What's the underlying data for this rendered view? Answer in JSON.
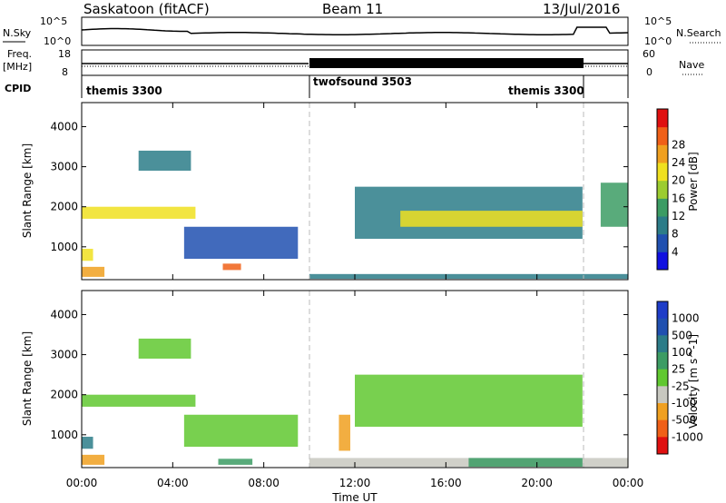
{
  "header": {
    "title": "Saskatoon (fitACF)",
    "beam": "Beam 11",
    "date": "13/Jul/2016"
  },
  "noise_panel": {
    "left_label": "N.Sky",
    "right_label": "N.Search",
    "left_ticks": [
      "10^5",
      "10^0"
    ],
    "right_ticks": [
      "10^5",
      "10^0"
    ]
  },
  "freq_panel": {
    "left_label_1": "Freq.",
    "left_label_2": "[MHz]",
    "right_label": "Nave",
    "left_ticks": [
      "18",
      "8"
    ],
    "right_ticks": [
      "60",
      "0"
    ]
  },
  "cpid_panel": {
    "label": "CPID",
    "segments": [
      {
        "label": "themis 3300",
        "start_h": 0,
        "end_h": 10
      },
      {
        "label": "twofsound 3503",
        "start_h": 10,
        "end_h": 22
      },
      {
        "label": "themis 3300",
        "start_h": 22,
        "end_h": 24
      }
    ]
  },
  "x_axis": {
    "label": "Time UT",
    "ticks": [
      "00:00",
      "04:00",
      "08:00",
      "12:00",
      "16:00",
      "20:00",
      "00:00"
    ]
  },
  "power_colorbar": {
    "label": "Power [dB]",
    "ticks": [
      "4",
      "8",
      "12",
      "16",
      "20",
      "24",
      "28"
    ],
    "colors": [
      "#1010e0",
      "#2050b0",
      "#2c7c88",
      "#3c9c64",
      "#9ccc30",
      "#f0e020",
      "#f0a020",
      "#f06018",
      "#e01010"
    ]
  },
  "velocity_colorbar": {
    "label": "Velocity [m s^-1]",
    "ticks": [
      "1000",
      "500",
      "100",
      "25",
      "-25",
      "-100",
      "-500",
      "-1000"
    ],
    "colors": [
      "#1e3cc8",
      "#2050b0",
      "#2c7c88",
      "#3c9c64",
      "#60c830",
      "#c8c8c0",
      "#f0a020",
      "#f06018",
      "#e01010"
    ]
  },
  "chart_data": [
    {
      "type": "heatmap",
      "title": "",
      "xlabel": "",
      "ylabel": "Slant Range [km]",
      "xlim": [
        0,
        24
      ],
      "ylim": [
        180,
        4600
      ],
      "yticks": [
        "1000",
        "2000",
        "3000",
        "4000"
      ],
      "colorbar": "Power [dB]",
      "regions": [
        {
          "x": [
            0.0,
            5.0
          ],
          "y": [
            1700,
            2000
          ],
          "value": 20
        },
        {
          "x": [
            0.0,
            1.0
          ],
          "y": [
            250,
            500
          ],
          "value": 24
        },
        {
          "x": [
            0.0,
            0.5
          ],
          "y": [
            650,
            950
          ],
          "value": 20
        },
        {
          "x": [
            2.5,
            4.8
          ],
          "y": [
            2900,
            3400
          ],
          "value": 8
        },
        {
          "x": [
            4.5,
            9.5
          ],
          "y": [
            700,
            1500
          ],
          "value": 6
        },
        {
          "x": [
            6.2,
            7.0
          ],
          "y": [
            420,
            580
          ],
          "value": 28
        },
        {
          "x": [
            10.0,
            24.0
          ],
          "y": [
            200,
            320
          ],
          "value": 10
        },
        {
          "x": [
            12.0,
            22.0
          ],
          "y": [
            1200,
            2500
          ],
          "value": 10
        },
        {
          "x": [
            14.0,
            22.0
          ],
          "y": [
            1500,
            1900
          ],
          "value": 20
        },
        {
          "x": [
            22.8,
            24.0
          ],
          "y": [
            1500,
            2600
          ],
          "value": 14
        }
      ]
    },
    {
      "type": "heatmap",
      "title": "",
      "xlabel": "Time UT",
      "ylabel": "Slant Range [km]",
      "xlim": [
        0,
        24
      ],
      "ylim": [
        180,
        4600
      ],
      "yticks": [
        "1000",
        "2000",
        "3000",
        "4000"
      ],
      "colorbar": "Velocity [m s^-1]",
      "regions": [
        {
          "x": [
            0.0,
            5.0
          ],
          "y": [
            1700,
            2000
          ],
          "value": 0
        },
        {
          "x": [
            0.0,
            1.0
          ],
          "y": [
            250,
            500
          ],
          "value": -200
        },
        {
          "x": [
            0.0,
            0.5
          ],
          "y": [
            650,
            950
          ],
          "value": 200
        },
        {
          "x": [
            2.5,
            4.8
          ],
          "y": [
            2900,
            3400
          ],
          "value": 0
        },
        {
          "x": [
            4.5,
            9.5
          ],
          "y": [
            700,
            1500
          ],
          "value": 0
        },
        {
          "x": [
            6.0,
            7.5
          ],
          "y": [
            250,
            400
          ],
          "value": 60
        },
        {
          "x": [
            11.3,
            11.8
          ],
          "y": [
            600,
            1500
          ],
          "value": -400
        },
        {
          "x": [
            12.0,
            22.0
          ],
          "y": [
            1200,
            2500
          ],
          "value": 0
        },
        {
          "x": [
            10.0,
            24.0
          ],
          "y": [
            200,
            420
          ],
          "value": -80
        },
        {
          "x": [
            17.0,
            22.0
          ],
          "y": [
            200,
            420
          ],
          "value": 60
        }
      ]
    }
  ]
}
